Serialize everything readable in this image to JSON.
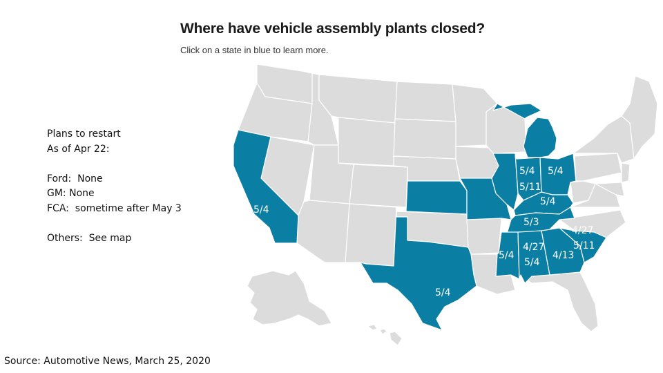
{
  "header": {
    "title": "Where have vehicle assembly plants closed?",
    "subtitle": "Click on a state in blue to learn more."
  },
  "notes": {
    "lines": [
      "Plans to restart",
      "As of Apr 22:",
      "",
      "Ford:  None",
      "GM: None",
      "FCA:  sometime after May 3",
      "",
      "Others:  See map"
    ]
  },
  "source": "Source:  Automotive News, March 25, 2020",
  "map": {
    "colors": {
      "closed": "#0a7fa3",
      "other": "#dcdcdc",
      "border": "#ffffff"
    },
    "closed_states": [
      "California",
      "Texas",
      "Kansas",
      "Missouri",
      "Illinois",
      "Indiana",
      "Michigan",
      "Ohio",
      "Kentucky",
      "Tennessee",
      "Mississippi",
      "Alabama",
      "Georgia",
      "South Carolina"
    ],
    "labels": {
      "california": "5/4",
      "texas": "5/4",
      "indiana": "5/4",
      "ohio": "5/4",
      "indiana_2": "5/11",
      "kentucky": "5/4",
      "tennessee": "5/3",
      "mississippi": "5/4",
      "alabama_1": "4/27",
      "alabama_2": "5/4",
      "georgia": "4/13",
      "south_carolina_1": "4/27",
      "south_carolina_2": "5/11"
    }
  }
}
